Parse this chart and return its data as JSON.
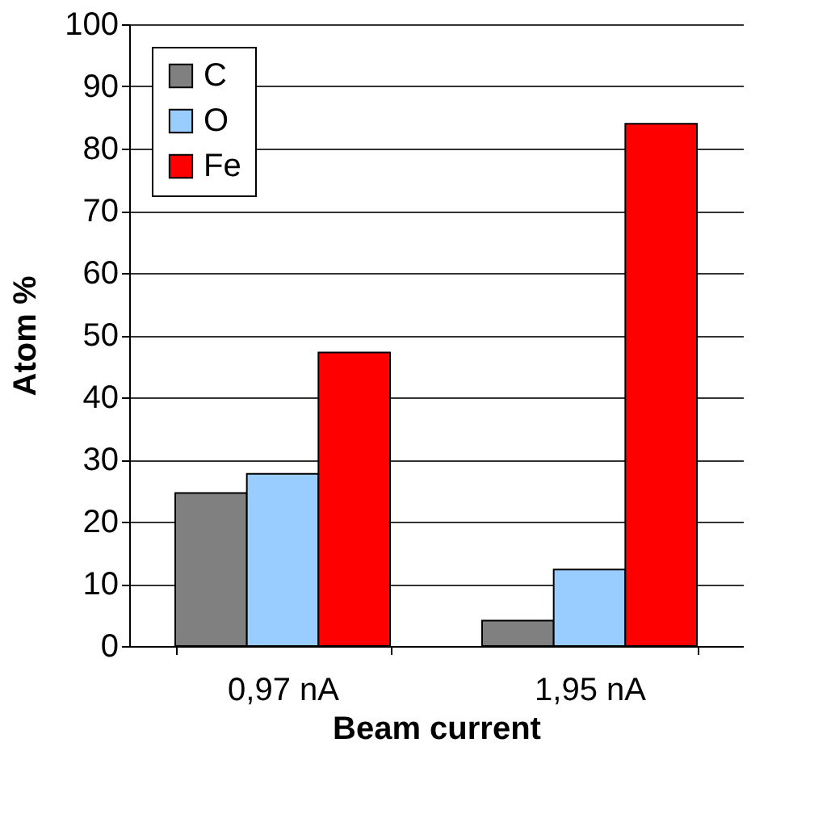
{
  "chart_data": {
    "type": "bar",
    "xlabel": "Beam current",
    "ylabel": "Atom %",
    "categories": [
      "0,97 nA",
      "1,95 nA"
    ],
    "series": [
      {
        "name": "C",
        "color": "#808080",
        "values": [
          24.6,
          4.1
        ]
      },
      {
        "name": "O",
        "color": "#99ccff",
        "values": [
          27.7,
          12.3
        ]
      },
      {
        "name": "Fe",
        "color": "#ff0000",
        "values": [
          47.2,
          84
        ]
      }
    ],
    "ylim": [
      0,
      100
    ],
    "yticks": [
      0,
      10,
      20,
      30,
      40,
      50,
      60,
      70,
      80,
      90,
      100
    ],
    "grid": "y",
    "legend": "top left"
  }
}
